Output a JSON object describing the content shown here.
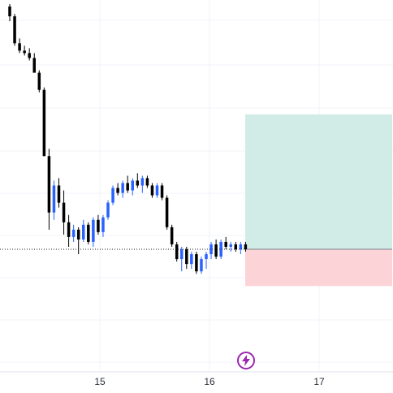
{
  "chart_data": {
    "type": "candlestick",
    "title": "",
    "xlabel": "",
    "ylabel": "",
    "x_ticks": [
      "15",
      "16",
      "17"
    ],
    "grid": true,
    "legend": "none",
    "y_range_relative": [
      0,
      100
    ],
    "up_color": "#2962ff",
    "down_color": "#000000",
    "candles": [
      {
        "o": 99,
        "h": 100,
        "l": 93,
        "c": 95
      },
      {
        "o": 95,
        "h": 96,
        "l": 83,
        "c": 84
      },
      {
        "o": 84,
        "h": 86,
        "l": 80,
        "c": 81
      },
      {
        "o": 81,
        "h": 83,
        "l": 79,
        "c": 80
      },
      {
        "o": 80,
        "h": 82,
        "l": 77,
        "c": 78
      },
      {
        "o": 78,
        "h": 80,
        "l": 72,
        "c": 72
      },
      {
        "o": 72,
        "h": 73,
        "l": 64,
        "c": 65
      },
      {
        "o": 65,
        "h": 66,
        "l": 38,
        "c": 38
      },
      {
        "o": 38,
        "h": 41,
        "l": 8,
        "c": 15
      },
      {
        "o": 15,
        "h": 28,
        "l": 12,
        "c": 26
      },
      {
        "o": 26,
        "h": 29,
        "l": 17,
        "c": 19
      },
      {
        "o": 19,
        "h": 24,
        "l": 6,
        "c": 11
      },
      {
        "o": 11,
        "h": 14,
        "l": 1,
        "c": 5
      },
      {
        "o": 5,
        "h": 10,
        "l": 3,
        "c": 8
      },
      {
        "o": 8,
        "h": 9,
        "l": -2,
        "c": 4
      },
      {
        "o": 4,
        "h": 12,
        "l": 3,
        "c": 10
      },
      {
        "o": 10,
        "h": 11,
        "l": 2,
        "c": 3
      },
      {
        "o": 3,
        "h": 13,
        "l": 1,
        "c": 12
      },
      {
        "o": 12,
        "h": 14,
        "l": 6,
        "c": 7
      },
      {
        "o": 7,
        "h": 14,
        "l": 5,
        "c": 13
      },
      {
        "o": 13,
        "h": 20,
        "l": 12,
        "c": 19
      },
      {
        "o": 19,
        "h": 26,
        "l": 18,
        "c": 25
      },
      {
        "o": 25,
        "h": 27,
        "l": 22,
        "c": 23
      },
      {
        "o": 23,
        "h": 28,
        "l": 21,
        "c": 27
      },
      {
        "o": 27,
        "h": 30,
        "l": 23,
        "c": 24
      },
      {
        "o": 24,
        "h": 29,
        "l": 22,
        "c": 28
      },
      {
        "o": 28,
        "h": 31,
        "l": 25,
        "c": 26
      },
      {
        "o": 26,
        "h": 30,
        "l": 23,
        "c": 29
      },
      {
        "o": 29,
        "h": 30,
        "l": 25,
        "c": 26
      },
      {
        "o": 26,
        "h": 27,
        "l": 21,
        "c": 22
      },
      {
        "o": 22,
        "h": 27,
        "l": 21,
        "c": 26
      },
      {
        "o": 26,
        "h": 27,
        "l": 20,
        "c": 21
      },
      {
        "o": 21,
        "h": 22,
        "l": 8,
        "c": 9
      },
      {
        "o": 9,
        "h": 10,
        "l": 1,
        "c": 2
      },
      {
        "o": 2,
        "h": 3,
        "l": -5,
        "c": -4
      },
      {
        "o": -4,
        "h": 1,
        "l": -9,
        "c": 0
      },
      {
        "o": 0,
        "h": 1,
        "l": -8,
        "c": -6
      },
      {
        "o": -6,
        "h": -1,
        "l": -8,
        "c": -2
      },
      {
        "o": -2,
        "h": -1,
        "l": -10,
        "c": -9
      },
      {
        "o": -9,
        "h": -3,
        "l": -10,
        "c": -4
      },
      {
        "o": -4,
        "h": -1,
        "l": -8,
        "c": -2
      },
      {
        "o": -2,
        "h": 3,
        "l": -4,
        "c": 2
      },
      {
        "o": 2,
        "h": 4,
        "l": -4,
        "c": -3
      },
      {
        "o": -3,
        "h": 4,
        "l": -4,
        "c": 3
      },
      {
        "o": 3,
        "h": 5,
        "l": 0,
        "c": 1
      },
      {
        "o": 1,
        "h": 3,
        "l": -1,
        "c": 2
      },
      {
        "o": 2,
        "h": 3,
        "l": -1,
        "c": 0
      },
      {
        "o": 0,
        "h": 3,
        "l": -2,
        "c": 2
      },
      {
        "o": 2,
        "h": 3,
        "l": -1,
        "c": 0
      }
    ],
    "current_price_rel": 0,
    "position": {
      "entry_rel": 0,
      "target_rel": 55,
      "stop_rel": -15,
      "profit_color": "#d1ece6",
      "loss_color": "#fcd4d8"
    }
  },
  "icons": {
    "flash": "lightning-icon"
  },
  "colors": {
    "accent": "#9c27b0"
  }
}
